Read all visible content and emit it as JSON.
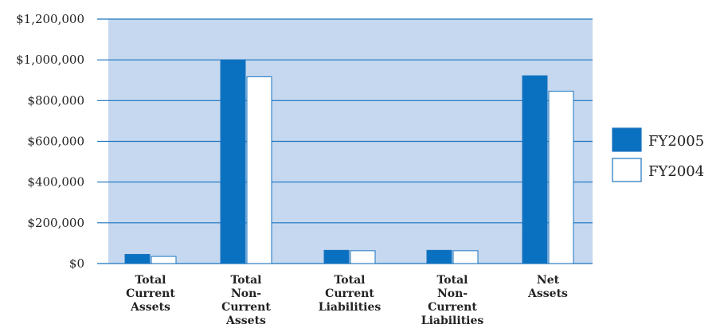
{
  "chart_data": {
    "type": "bar",
    "categories": [
      [
        "Total",
        "Current",
        "Assets"
      ],
      [
        "Total",
        "Non-",
        "Current",
        "Assets"
      ],
      [
        "Total",
        "Current",
        "Liabilities"
      ],
      [
        "Total",
        "Non-",
        "Current",
        "Liabilities"
      ],
      [
        "Net",
        "Assets"
      ]
    ],
    "series": [
      {
        "name": "FY2005",
        "color": "#0a71c0",
        "values": [
          45000,
          1000000,
          65000,
          65000,
          922000
        ]
      },
      {
        "name": "FY2004",
        "color": "#ffffff",
        "values": [
          35000,
          917000,
          63000,
          63000,
          846000
        ]
      }
    ],
    "ylim": [
      0,
      1200000
    ],
    "yticks": [
      {
        "value": 0,
        "label": "$0"
      },
      {
        "value": 200000,
        "label": "$200,000"
      },
      {
        "value": 400000,
        "label": "$400,000"
      },
      {
        "value": 600000,
        "label": "$600,000"
      },
      {
        "value": 800000,
        "label": "$800,000"
      },
      {
        "value": 1000000,
        "label": "$1,000,000"
      },
      {
        "value": 1200000,
        "label": "$1,200,000"
      }
    ],
    "grid": true,
    "legend_position": "right",
    "colors": {
      "plot_background": "#c5d8ef",
      "gridline": "#1a73bf",
      "bar_edge": "#1a73bf"
    }
  }
}
